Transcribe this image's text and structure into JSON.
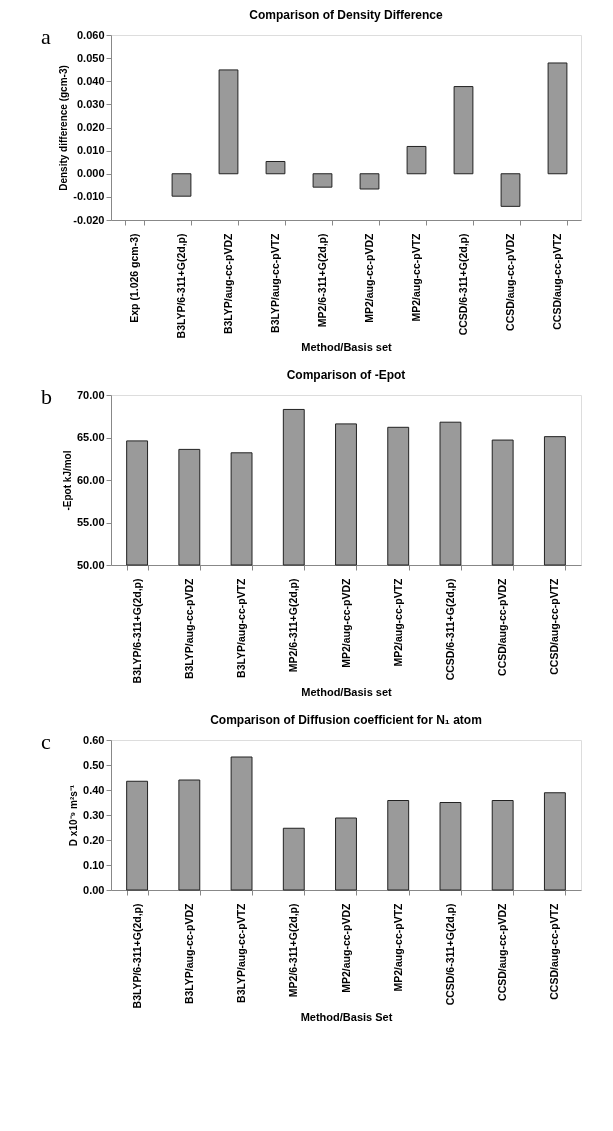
{
  "chart_data": [
    {
      "type": "bar",
      "title": "Comparison of Density Difference",
      "xlabel": "Method/Basis set",
      "ylabel": "Density difference (gcm-3)",
      "annotations": [
        "a"
      ],
      "categories": [
        "Exp (1.026 gcm-3)",
        "B3LYP/6-311+G(2d,p)",
        "B3LYP/aug-cc-pVDZ",
        "B3LYP/aug-cc-pVTZ",
        "MP2/6-311+G(2d,p)",
        "MP2/aug-cc-pVDZ",
        "MP2/aug-cc-pVTZ",
        "CCSD/6-311+G(2d,p)",
        "CCSD/aug-cc-pVDZ",
        "CCSD/aug-cc-pVTZ"
      ],
      "values": [
        null,
        -0.0097,
        0.0449,
        0.0053,
        -0.0058,
        -0.0066,
        0.0118,
        0.0377,
        -0.0141,
        0.0479
      ],
      "color": "#9a9a9a",
      "ylim": [
        -0.02,
        0.06
      ],
      "yticks": [
        {
          "value": -0.02,
          "label": "-0.020"
        },
        {
          "value": -0.01,
          "label": "-0.010"
        },
        {
          "value": 0,
          "label": "0.000"
        },
        {
          "value": 0.01,
          "label": "0.010"
        },
        {
          "value": 0.02,
          "label": "0.020"
        },
        {
          "value": 0.03,
          "label": "0.030"
        },
        {
          "value": 0.04,
          "label": "0.040"
        },
        {
          "value": 0.05,
          "label": "0.050"
        },
        {
          "value": 0.06,
          "label": "0.060"
        }
      ],
      "grid": false
    },
    {
      "type": "bar",
      "title": "Comparison of -Epot",
      "xlabel": "Method/Basis set",
      "ylabel": "-Epot kJ/mol",
      "annotations": [
        "b"
      ],
      "categories": [
        "B3LYP/6-311+G(2d,p)",
        "B3LYP/aug-cc-pVDZ",
        "B3LYP/aug-cc-pVTZ",
        "MP2/6-311+G(2d,p)",
        "MP2/aug-cc-pVDZ",
        "MP2/aug-cc-pVTZ",
        "CCSD/6-311+G(2d,p)",
        "CCSD/aug-cc-pVDZ",
        "CCSD/aug-cc-pVTZ"
      ],
      "values": [
        64.6,
        63.6,
        63.2,
        68.3,
        66.6,
        66.2,
        66.8,
        64.7,
        65.1
      ],
      "color": "#9a9a9a",
      "ylim": [
        50,
        70
      ],
      "yticks": [
        {
          "value": 50,
          "label": "50.00"
        },
        {
          "value": 55,
          "label": "55.00"
        },
        {
          "value": 60,
          "label": "60.00"
        },
        {
          "value": 65,
          "label": "65.00"
        },
        {
          "value": 70,
          "label": "70.00"
        }
      ],
      "grid": false
    },
    {
      "type": "bar",
      "title": "Comparison of Diffusion coefficient for N₁ atom",
      "xlabel": "Method/Basis Set",
      "ylabel": "D x10⁻⁹ m²s⁻¹",
      "annotations": [
        "c"
      ],
      "categories": [
        "B3LYP/6-311+G(2d,p)",
        "B3LYP/aug-cc-pVDZ",
        "B3LYP/aug-cc-pVTZ",
        "MP2/6-311+G(2d,p)",
        "MP2/aug-cc-pVDZ",
        "MP2/aug-cc-pVTZ",
        "CCSD/6-311+G(2d,p)",
        "CCSD/aug-cc-pVDZ",
        "CCSD/aug-cc-pVTZ"
      ],
      "values": [
        0.435,
        0.44,
        0.532,
        0.247,
        0.288,
        0.358,
        0.35,
        0.358,
        0.389
      ],
      "color": "#9a9a9a",
      "ylim": [
        0,
        0.6
      ],
      "yticks": [
        {
          "value": 0,
          "label": "0.00"
        },
        {
          "value": 0.1,
          "label": "0.10"
        },
        {
          "value": 0.2,
          "label": "0.20"
        },
        {
          "value": 0.3,
          "label": "0.30"
        },
        {
          "value": 0.4,
          "label": "0.40"
        },
        {
          "value": 0.5,
          "label": "0.50"
        },
        {
          "value": 0.6,
          "label": "0.60"
        }
      ],
      "grid": false
    }
  ]
}
